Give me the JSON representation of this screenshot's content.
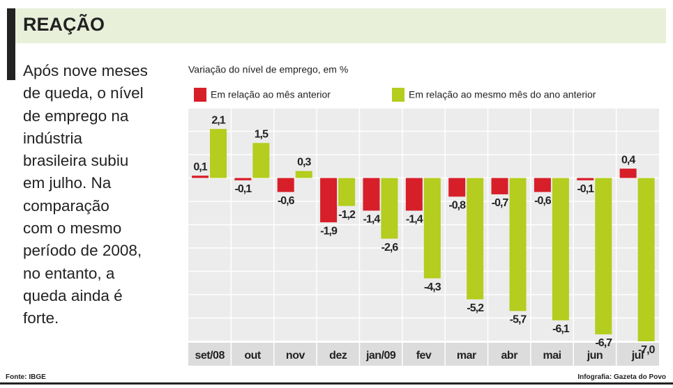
{
  "header": {
    "title": "REAÇÃO"
  },
  "body_lines": [
    "Após nove meses",
    "de queda, o nível",
    "de emprego na",
    "indústria",
    "brasileira subiu",
    "em julho. Na",
    "comparação",
    "com o mesmo",
    "período de 2008,",
    "no entanto, a",
    "queda ainda é",
    "forte."
  ],
  "footer": {
    "source": "Fonte: IBGE",
    "credit": "Infografia: Gazeta do Povo"
  },
  "chart_data": {
    "type": "bar",
    "subtitle": "Variação do nível de emprego, em %",
    "categories": [
      "set/08",
      "out",
      "nov",
      "dez",
      "jan/09",
      "fev",
      "mar",
      "abr",
      "mai",
      "jun",
      "jul"
    ],
    "series": [
      {
        "name": "Em relação ao mês anterior",
        "color": "#d71f2a",
        "values": [
          0.1,
          -0.1,
          -0.6,
          -1.9,
          -1.4,
          -1.4,
          -0.8,
          -0.7,
          -0.6,
          -0.1,
          0.4
        ],
        "value_labels": [
          "0,1",
          "-0,1",
          "-0,6",
          "-1,9",
          "-1,4",
          "-1,4",
          "-0,8",
          "-0,7",
          "-0,6",
          "-0,1",
          "0,4"
        ]
      },
      {
        "name": "Em relação ao mesmo mês do ano anterior",
        "color": "#b4cd1e",
        "values": [
          2.1,
          1.5,
          0.3,
          -1.2,
          -2.6,
          -4.3,
          -5.2,
          -5.7,
          -6.1,
          -6.7,
          -7.0
        ],
        "value_labels": [
          "2,1",
          "1,5",
          "0,3",
          "-1,2",
          "-2,6",
          "-4,3",
          "-5,2",
          "-5,7",
          "-6,1",
          "-6,7",
          "-7,0"
        ]
      }
    ],
    "ylim": [
      -7,
      3
    ],
    "yticks": [
      -7,
      -6,
      -5,
      -4,
      -3,
      -2,
      -1,
      0,
      1,
      2,
      3
    ],
    "grid": true
  }
}
